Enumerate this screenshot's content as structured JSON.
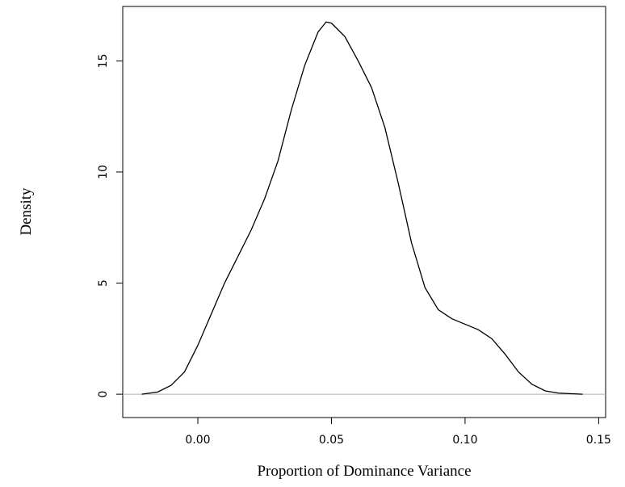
{
  "chart_data": {
    "type": "line",
    "x_label": "Proportion of Dominance Variance",
    "y_label": "Density",
    "x": [
      -0.021,
      -0.015,
      -0.01,
      -0.005,
      0.0,
      0.005,
      0.01,
      0.015,
      0.02,
      0.025,
      0.03,
      0.035,
      0.04,
      0.045,
      0.048,
      0.05,
      0.055,
      0.06,
      0.065,
      0.07,
      0.075,
      0.08,
      0.085,
      0.09,
      0.095,
      0.1,
      0.105,
      0.11,
      0.115,
      0.12,
      0.125,
      0.13,
      0.135,
      0.144
    ],
    "series": [
      {
        "color": "#000000",
        "values": [
          0,
          0.1,
          0.4,
          1.0,
          2.2,
          3.6,
          5.0,
          6.2,
          7.4,
          8.8,
          10.5,
          12.8,
          14.8,
          16.3,
          16.75,
          16.7,
          16.1,
          15.0,
          13.8,
          12.0,
          9.5,
          6.8,
          4.8,
          3.8,
          3.4,
          3.15,
          2.9,
          2.5,
          1.8,
          1.0,
          0.45,
          0.15,
          0.05,
          0.0
        ]
      }
    ],
    "hline": 0,
    "hline_color": "#b0b0b0",
    "xlim": [
      -0.0281,
      0.1526
    ],
    "ylim": [
      -1.05,
      17.45
    ],
    "xticks": [
      {
        "value": 0,
        "label": "0.00"
      },
      0.05,
      {
        "value": 0.1,
        "label": "0.10"
      },
      0.15
    ],
    "yticks": [
      0,
      5,
      10,
      15
    ]
  }
}
